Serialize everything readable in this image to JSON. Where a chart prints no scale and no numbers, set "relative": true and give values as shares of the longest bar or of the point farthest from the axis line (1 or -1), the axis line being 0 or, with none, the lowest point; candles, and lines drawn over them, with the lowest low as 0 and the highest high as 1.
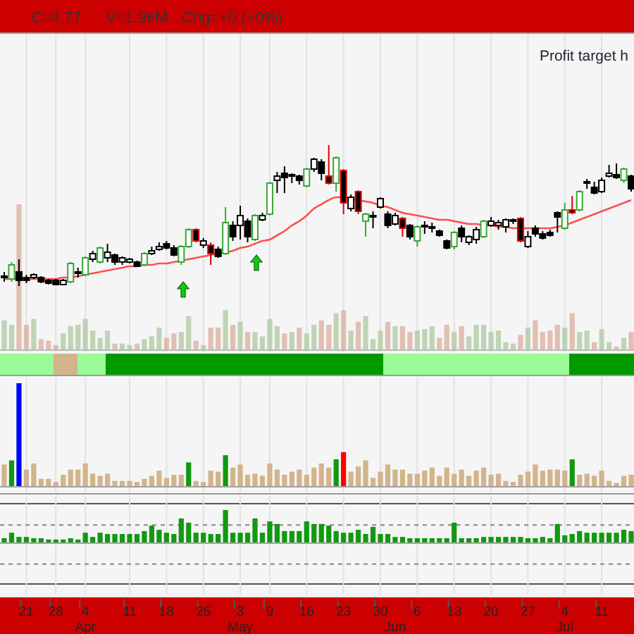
{
  "chart_data": [
    {
      "type": "candlestick",
      "relative": true,
      "grid": "x",
      "tick_labels": false,
      "categories": [
        null,
        null,
        null,
        "21",
        null,
        null,
        null,
        "28",
        null,
        null,
        null,
        "4",
        null,
        null,
        null,
        null,
        null,
        "11",
        null,
        null,
        null,
        null,
        "18",
        null,
        null,
        null,
        null,
        "25",
        null,
        null,
        null,
        null,
        "3",
        null,
        null,
        null,
        "9",
        null,
        null,
        null,
        null,
        "16",
        null,
        null,
        null,
        null,
        "23",
        null,
        null,
        null,
        null,
        "30",
        null,
        null,
        null,
        null,
        "6",
        null,
        null,
        null,
        null,
        "13",
        null,
        null,
        null,
        null,
        "20",
        null,
        null,
        null,
        null,
        "27",
        null,
        null,
        null,
        null,
        "4",
        null,
        null,
        null,
        null,
        "11",
        null,
        null,
        null,
        null
      ],
      "ohlc": [
        [
          0.06,
          0.1,
          0.03,
          0.07
        ],
        [
          0.05,
          0.17,
          0.03,
          0.15
        ],
        [
          0.1,
          0.19,
          0,
          0.04
        ],
        [
          0.06,
          0.08,
          0.02,
          0.04
        ],
        [
          0.06,
          0.09,
          0.05,
          0.08
        ],
        [
          0.06,
          0.07,
          0.02,
          0.03
        ],
        [
          0.04,
          0.05,
          0.01,
          0.02
        ],
        [
          0.04,
          0.05,
          0.01,
          0.01
        ],
        [
          0.01,
          0.05,
          0.01,
          0.04
        ],
        [
          0.03,
          0.17,
          0.02,
          0.16
        ],
        [
          0.09,
          0.13,
          0.06,
          0.1
        ],
        [
          0.08,
          0.21,
          0.07,
          0.2
        ],
        [
          0.19,
          0.25,
          0.17,
          0.23
        ],
        [
          0.17,
          0.28,
          0.16,
          0.27
        ],
        [
          0.2,
          0.3,
          0.17,
          0.24
        ],
        [
          0.22,
          0.23,
          0.15,
          0.17
        ],
        [
          0.17,
          0.21,
          0.15,
          0.2
        ],
        [
          0.17,
          0.2,
          0.16,
          0.19
        ],
        [
          0.17,
          0.18,
          0.14,
          0.14
        ],
        [
          0.15,
          0.24,
          0.14,
          0.23
        ],
        [
          0.23,
          0.28,
          0.22,
          0.25
        ],
        [
          0.26,
          0.31,
          0.25,
          0.28
        ],
        [
          0.3,
          0.32,
          0.26,
          0.27
        ],
        [
          0.27,
          0.29,
          0.21,
          0.22
        ],
        [
          0.17,
          0.29,
          0.15,
          0.28
        ],
        [
          0.28,
          0.41,
          0.27,
          0.4
        ],
        [
          0.4,
          0.41,
          0.31,
          0.32
        ],
        [
          0.29,
          0.34,
          0.27,
          0.32
        ],
        [
          0.29,
          0.31,
          0.15,
          0.23
        ],
        [
          0.26,
          0.28,
          0.2,
          0.21
        ],
        [
          0.23,
          0.56,
          0.22,
          0.45
        ],
        [
          0.43,
          0.46,
          0.32,
          0.35
        ],
        [
          0.43,
          0.57,
          0.33,
          0.5
        ],
        [
          0.46,
          0.48,
          0.31,
          0.35
        ],
        [
          0.33,
          0.51,
          0.32,
          0.5
        ],
        [
          0.47,
          0.52,
          0.46,
          0.5
        ],
        [
          0.51,
          0.74,
          0.5,
          0.73
        ],
        [
          0.75,
          0.81,
          0.66,
          0.78
        ],
        [
          0.8,
          0.85,
          0.66,
          0.77
        ],
        [
          0.78,
          0.8,
          0.73,
          0.79
        ],
        [
          0.78,
          0.79,
          0.72,
          0.75
        ],
        [
          0.71,
          0.84,
          0.7,
          0.83
        ],
        [
          0.83,
          0.91,
          0.81,
          0.9
        ],
        [
          0.88,
          0.9,
          0.75,
          0.8
        ],
        [
          0.78,
          1,
          0.72,
          0.73
        ],
        [
          0.73,
          0.92,
          0.67,
          0.91
        ],
        [
          0.82,
          0.83,
          0.51,
          0.59
        ],
        [
          0.55,
          0.65,
          0.53,
          0.63
        ],
        [
          0.67,
          0.68,
          0.51,
          0.53
        ],
        [
          0.46,
          0.52,
          0.35,
          0.51
        ],
        [
          0.49,
          0.53,
          0.41,
          0.5
        ],
        [
          0.56,
          0.63,
          0.55,
          0.62
        ],
        [
          0.51,
          0.53,
          0.41,
          0.43
        ],
        [
          0.44,
          0.52,
          0.43,
          0.5
        ],
        [
          0.48,
          0.49,
          0.35,
          0.41
        ],
        [
          0.43,
          0.44,
          0.33,
          0.35
        ],
        [
          0.32,
          0.43,
          0.28,
          0.42
        ],
        [
          0.42,
          0.46,
          0.37,
          0.43
        ],
        [
          0.41,
          0.45,
          0.38,
          0.42
        ],
        [
          0.39,
          0.4,
          0.35,
          0.36
        ],
        [
          0.32,
          0.33,
          0.26,
          0.27
        ],
        [
          0.28,
          0.39,
          0.26,
          0.38
        ],
        [
          0.41,
          0.43,
          0.31,
          0.35
        ],
        [
          0.31,
          0.36,
          0.29,
          0.35
        ],
        [
          0.33,
          0.42,
          0.3,
          0.4
        ],
        [
          0.35,
          0.47,
          0.34,
          0.46
        ],
        [
          0.43,
          0.49,
          0.42,
          0.46
        ],
        [
          0.43,
          0.47,
          0.4,
          0.45
        ],
        [
          0.42,
          0.48,
          0.38,
          0.47
        ],
        [
          0.46,
          0.48,
          0.44,
          0.47
        ],
        [
          0.48,
          0.49,
          0.31,
          0.32
        ],
        [
          0.28,
          0.39,
          0.27,
          0.35
        ],
        [
          0.41,
          0.43,
          0.35,
          0.37
        ],
        [
          0.37,
          0.39,
          0.33,
          0.34
        ],
        [
          0.38,
          0.4,
          0.35,
          0.36
        ],
        [
          0.52,
          0.53,
          0.38,
          0.49
        ],
        [
          0.41,
          0.59,
          0.4,
          0.54
        ],
        [
          0.54,
          0.64,
          0.51,
          0.52
        ],
        [
          0.54,
          0.68,
          0.53,
          0.67
        ],
        [
          0.73,
          0.76,
          0.69,
          0.74
        ],
        [
          0.7,
          0.74,
          0.65,
          0.66
        ],
        [
          0.67,
          0.77,
          0.66,
          0.75
        ],
        [
          0.78,
          0.86,
          0.77,
          0.8
        ],
        [
          0.79,
          0.87,
          0.76,
          0.77
        ],
        [
          0.75,
          0.84,
          0.73,
          0.83
        ],
        [
          0.78,
          0.79,
          0.67,
          0.69
        ]
      ],
      "colors": [
        "#000000",
        "#33aa33",
        "#000000",
        "#000000",
        "#000000",
        "#000000",
        "#000000",
        "#000000",
        "#000000",
        "#33aa33",
        "#000000",
        "#33aa33",
        "#000000",
        "#33aa33",
        "#000000",
        "#000000",
        "#000000",
        "#000000",
        "#000000",
        "#33aa33",
        "#000000",
        "#000000",
        "#000000",
        "#000000",
        "#33aa33",
        "#33aa33",
        "#e00000",
        "#000000",
        "#e00000",
        "#000000",
        "#33aa33",
        "#000000",
        "#000000",
        "#000000",
        "#33aa33",
        "#000000",
        "#33aa33",
        "#000000",
        "#000000",
        "#000000",
        "#000000",
        "#33aa33",
        "#000000",
        "#000000",
        "#e00000",
        "#33aa33",
        "#e00000",
        "#000000",
        "#e00000",
        "#33aa33",
        "#000000",
        "#000000",
        "#000000",
        "#000000",
        "#e00000",
        "#000000",
        "#33aa33",
        "#000000",
        "#000000",
        "#000000",
        "#000000",
        "#33aa33",
        "#000000",
        "#000000",
        "#000000",
        "#33aa33",
        "#000000",
        "#000000",
        "#000000",
        "#000000",
        "#e00000",
        "#000000",
        "#000000",
        "#000000",
        "#000000",
        "#000000",
        "#33aa33",
        "#e00000",
        "#33aa33",
        "#000000",
        "#000000",
        "#000000",
        "#000000",
        "#000000",
        "#33aa33",
        "#000000"
      ],
      "series": [
        {
          "type": "line",
          "color": "#ff5050",
          "values": [
            0.05,
            0.05,
            0.05,
            0.05,
            0.05,
            0.05,
            0.05,
            0.05,
            0.06,
            0.06,
            0.07,
            0.08,
            0.09,
            0.1,
            0.11,
            0.12,
            0.13,
            0.14,
            0.14,
            0.15,
            0.15,
            0.16,
            0.16,
            0.17,
            0.18,
            0.19,
            0.2,
            0.21,
            0.22,
            0.23,
            0.24,
            0.25,
            0.27,
            0.28,
            0.3,
            0.32,
            0.33,
            0.36,
            0.39,
            0.43,
            0.46,
            0.5,
            0.55,
            0.58,
            0.61,
            0.63,
            0.63,
            0.62,
            0.61,
            0.6,
            0.59,
            0.57,
            0.56,
            0.54,
            0.52,
            0.51,
            0.5,
            0.49,
            0.48,
            0.47,
            0.47,
            0.46,
            0.45,
            0.44,
            0.44,
            0.43,
            0.43,
            0.42,
            0.42,
            0.41,
            0.41,
            0.41,
            0.41,
            0.41,
            0.41,
            0.42,
            0.43,
            0.45,
            0.47,
            0.49,
            0.51,
            0.53,
            0.55,
            0.57,
            0.59,
            0.61
          ]
        }
      ],
      "annotations": [
        "C=4.77",
        "V=1.96M",
        "Chg=+0 (+0%)",
        "Profit target h"
      ]
    },
    {
      "type": "bar",
      "relative": true,
      "tick_labels": false,
      "categories": [
        null,
        null,
        null,
        "21",
        null,
        null,
        null,
        "28",
        null,
        null,
        null,
        "4",
        null,
        null,
        null,
        null,
        null,
        "11",
        null,
        null,
        null,
        null,
        "18",
        null,
        null,
        null,
        null,
        "25",
        null,
        null,
        null,
        null,
        "3",
        null,
        null,
        null,
        "9",
        null,
        null,
        null,
        null,
        "16",
        null,
        null,
        null,
        null,
        "23",
        null,
        null,
        null,
        null,
        "30",
        null,
        null,
        null,
        null,
        "6",
        null,
        null,
        null,
        null,
        "13",
        null,
        null,
        null,
        null,
        "20",
        null,
        null,
        null,
        null,
        "27",
        null,
        null,
        null,
        null,
        "4",
        null,
        null,
        null,
        null,
        "11",
        null,
        null,
        null,
        null
      ],
      "values": [
        0.2,
        0.17,
        1,
        0.17,
        0.21,
        0.07,
        0.06,
        0.03,
        0.11,
        0.16,
        0.17,
        0.21,
        0.13,
        0.08,
        0.13,
        0.04,
        0.04,
        0.03,
        0.04,
        0.07,
        0.09,
        0.15,
        0.08,
        0.11,
        0.12,
        0.23,
        0.06,
        0.03,
        0.15,
        0.15,
        0.27,
        0.17,
        0.19,
        0.12,
        0.12,
        0.09,
        0.21,
        0.16,
        0.11,
        0.12,
        0.15,
        0.11,
        0.17,
        0.2,
        0.17,
        0.25,
        0.27,
        0.13,
        0.19,
        0.23,
        0.07,
        0.13,
        0.19,
        0.16,
        0.16,
        0.12,
        0.13,
        0.14,
        0.16,
        0.08,
        0.17,
        0.12,
        0.16,
        0.09,
        0.17,
        0.17,
        0.12,
        0.13,
        0.05,
        0.04,
        0.1,
        0.15,
        0.2,
        0.12,
        0.13,
        0.17,
        0.15,
        0.25,
        0.12,
        0.13,
        0.05,
        0.14,
        0.05,
        0.02,
        0.08,
        0.12
      ],
      "colors": [
        "#a9c79b",
        "#a9c79b",
        "#dba898",
        "#dba898",
        "#a9c79b",
        "#dba898",
        "#dba898",
        "#dba898",
        "#a9c79b",
        "#a9c79b",
        "#a9c79b",
        "#a9c79b",
        "#a9c79b",
        "#a9c79b",
        "#a9c79b",
        "#dba898",
        "#a9c79b",
        "#a9c79b",
        "#dba898",
        "#a9c79b",
        "#a9c79b",
        "#a9c79b",
        "#dba898",
        "#dba898",
        "#a9c79b",
        "#a9c79b",
        "#dba898",
        "#a9c79b",
        "#dba898",
        "#dba898",
        "#a9c79b",
        "#dba898",
        "#a9c79b",
        "#dba898",
        "#a9c79b",
        "#a9c79b",
        "#a9c79b",
        "#a9c79b",
        "#dba898",
        "#a9c79b",
        "#dba898",
        "#a9c79b",
        "#a9c79b",
        "#dba898",
        "#dba898",
        "#a9c79b",
        "#dba898",
        "#a9c79b",
        "#dba898",
        "#a9c79b",
        "#a9c79b",
        "#a9c79b",
        "#dba898",
        "#a9c79b",
        "#dba898",
        "#dba898",
        "#a9c79b",
        "#a9c79b",
        "#a9c79b",
        "#dba898",
        "#dba898",
        "#a9c79b",
        "#dba898",
        "#a9c79b",
        "#a9c79b",
        "#a9c79b",
        "#a9c79b",
        "#a9c79b",
        "#a9c79b",
        "#a9c79b",
        "#dba898",
        "#a9c79b",
        "#dba898",
        "#dba898",
        "#dba898",
        "#dba898",
        "#a9c79b",
        "#dba898",
        "#a9c79b",
        "#a9c79b",
        "#dba898",
        "#a9c79b",
        "#a9c79b",
        "#dba898",
        "#a9c79b",
        "#dba898"
      ]
    },
    {
      "type": "bar",
      "relative": true,
      "grid": "x",
      "tick_labels": false,
      "categories": [
        null,
        null,
        null,
        "21",
        null,
        null,
        null,
        "28",
        null,
        null,
        null,
        "4",
        null,
        null,
        null,
        null,
        null,
        "11",
        null,
        null,
        null,
        null,
        "18",
        null,
        null,
        null,
        null,
        "25",
        null,
        null,
        null,
        null,
        "3",
        null,
        null,
        null,
        "9",
        null,
        null,
        null,
        null,
        "16",
        null,
        null,
        null,
        null,
        "23",
        null,
        null,
        null,
        null,
        "30",
        null,
        null,
        null,
        null,
        "6",
        null,
        null,
        null,
        null,
        "13",
        null,
        null,
        null,
        null,
        "20",
        null,
        null,
        null,
        null,
        "27",
        null,
        null,
        null,
        null,
        "4",
        null,
        null,
        null,
        null,
        "11",
        null,
        null,
        null,
        null
      ],
      "values": [
        0.21,
        0.25,
        1,
        0.16,
        0.22,
        0.07,
        0.07,
        0.04,
        0.11,
        0.16,
        0.16,
        0.22,
        0.12,
        0.1,
        0.12,
        0.05,
        0.05,
        0.05,
        0.04,
        0.07,
        0.1,
        0.15,
        0.08,
        0.11,
        0.11,
        0.23,
        0.05,
        0.04,
        0.15,
        0.14,
        0.3,
        0.18,
        0.21,
        0.11,
        0.12,
        0.1,
        0.22,
        0.16,
        0.11,
        0.14,
        0.16,
        0.11,
        0.18,
        0.22,
        0.18,
        0.26,
        0.33,
        0.14,
        0.19,
        0.25,
        0.08,
        0.14,
        0.21,
        0.16,
        0.16,
        0.12,
        0.12,
        0.15,
        0.18,
        0.1,
        0.18,
        0.12,
        0.16,
        0.1,
        0.15,
        0.18,
        0.11,
        0.12,
        0.05,
        0.04,
        0.11,
        0.14,
        0.21,
        0.15,
        0.16,
        0.16,
        0.15,
        0.26,
        0.11,
        0.12,
        0.1,
        0.15,
        0.05,
        0.03,
        0.1,
        0.11
      ],
      "colors": [
        "#d2b48c",
        "#109910",
        "#0000ff",
        "#d2b48c",
        "#d2b48c",
        "#d2b48c",
        "#d2b48c",
        "#d2b48c",
        "#d2b48c",
        "#d2b48c",
        "#d2b48c",
        "#d2b48c",
        "#d2b48c",
        "#d2b48c",
        "#d2b48c",
        "#d2b48c",
        "#d2b48c",
        "#d2b48c",
        "#d2b48c",
        "#d2b48c",
        "#d2b48c",
        "#d2b48c",
        "#d2b48c",
        "#d2b48c",
        "#d2b48c",
        "#109910",
        "#d2b48c",
        "#d2b48c",
        "#d2b48c",
        "#d2b48c",
        "#109910",
        "#d2b48c",
        "#d2b48c",
        "#d2b48c",
        "#d2b48c",
        "#d2b48c",
        "#d2b48c",
        "#d2b48c",
        "#d2b48c",
        "#d2b48c",
        "#d2b48c",
        "#d2b48c",
        "#d2b48c",
        "#d2b48c",
        "#d2b48c",
        "#109910",
        "#ff0000",
        "#d2b48c",
        "#d2b48c",
        "#d2b48c",
        "#d2b48c",
        "#d2b48c",
        "#d2b48c",
        "#d2b48c",
        "#d2b48c",
        "#d2b48c",
        "#d2b48c",
        "#d2b48c",
        "#d2b48c",
        "#d2b48c",
        "#d2b48c",
        "#d2b48c",
        "#d2b48c",
        "#d2b48c",
        "#d2b48c",
        "#d2b48c",
        "#d2b48c",
        "#d2b48c",
        "#d2b48c",
        "#d2b48c",
        "#d2b48c",
        "#d2b48c",
        "#d2b48c",
        "#d2b48c",
        "#d2b48c",
        "#d2b48c",
        "#d2b48c",
        "#109910",
        "#d2b48c",
        "#d2b48c",
        "#d2b48c",
        "#d2b48c",
        "#d2b48c",
        "#d2b48c",
        "#d2b48c",
        "#d2b48c"
      ]
    },
    {
      "type": "bar",
      "relative": true,
      "grid": "x",
      "color": "#119911",
      "categories": [
        null,
        null,
        null,
        "21",
        null,
        null,
        null,
        "28",
        null,
        null,
        null,
        "4",
        null,
        null,
        null,
        null,
        null,
        "11",
        null,
        null,
        null,
        null,
        "18",
        null,
        null,
        null,
        null,
        "25",
        null,
        null,
        null,
        null,
        "3",
        null,
        null,
        null,
        "9",
        null,
        null,
        null,
        null,
        "16",
        null,
        null,
        null,
        null,
        "23",
        null,
        null,
        null,
        null,
        "30",
        null,
        null,
        null,
        null,
        "6",
        null,
        null,
        null,
        null,
        "13",
        null,
        null,
        null,
        null,
        "20",
        null,
        null,
        null,
        null,
        "27",
        null,
        null,
        null,
        null,
        "4",
        null,
        null,
        null,
        null,
        "11",
        null,
        null,
        null,
        null
      ],
      "values": [
        0.13,
        0.3,
        0.17,
        0.17,
        0.13,
        0.13,
        0.09,
        0.09,
        0.09,
        0.13,
        0.09,
        0.3,
        0.17,
        0.3,
        0.26,
        0.26,
        0.26,
        0.26,
        0.26,
        0.35,
        0.52,
        0.39,
        0.3,
        0.26,
        0.74,
        0.61,
        0.3,
        0.3,
        0.26,
        0.26,
        1,
        0.3,
        0.3,
        0.3,
        0.74,
        0.3,
        0.65,
        0.57,
        0.35,
        0.35,
        0.35,
        0.65,
        0.57,
        0.57,
        0.52,
        0.35,
        0.3,
        0.3,
        0.39,
        0.26,
        0.48,
        0.26,
        0.26,
        0.17,
        0.17,
        0.13,
        0.13,
        0.13,
        0.13,
        0.13,
        0.13,
        0.61,
        0.13,
        0.13,
        0.13,
        0.17,
        0.17,
        0.17,
        0.17,
        0.17,
        0.17,
        0.13,
        0.13,
        0.17,
        0.13,
        0.57,
        0.22,
        0.26,
        0.35,
        0.3,
        0.3,
        0.3,
        0.3,
        0.3,
        0.39,
        0.35
      ],
      "annotations": [
        "Apr",
        "May",
        "Jun",
        "Jul"
      ],
      "ref_lines": [
        {
          "axis": "y",
          "value": 0.54,
          "line_style": "dashed",
          "color": "#888888"
        },
        {
          "axis": "y",
          "value": -0.67,
          "line_style": "dashed",
          "color": "#888888"
        }
      ]
    }
  ]
}
